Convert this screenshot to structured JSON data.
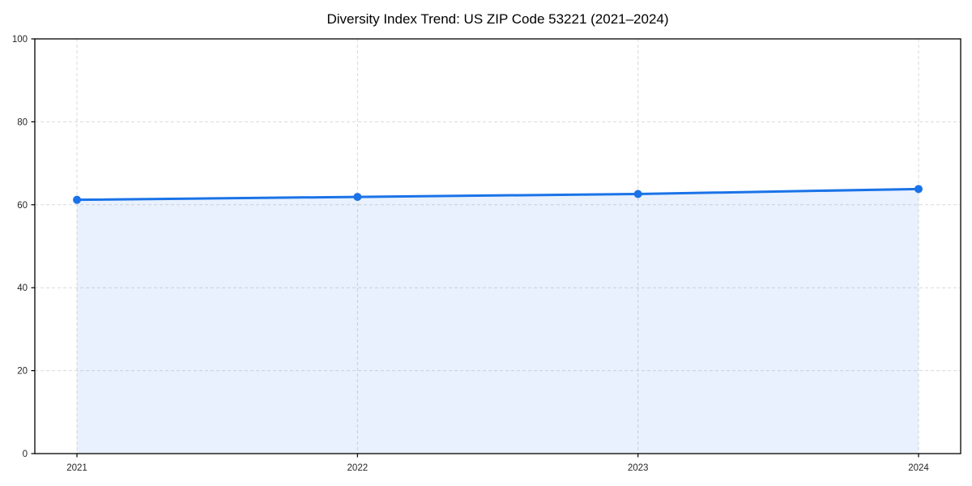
{
  "chart_data": {
    "type": "area",
    "title": "Diversity Index Trend: US ZIP Code 53221 (2021–2024)",
    "x": [
      "2021",
      "2022",
      "2023",
      "2024"
    ],
    "series": [
      {
        "name": "Diversity Index",
        "values": [
          61.2,
          61.9,
          62.6,
          63.8
        ]
      }
    ],
    "xlabel": "",
    "ylabel": "",
    "ylim": [
      0,
      100
    ],
    "yticks": [
      0,
      20,
      40,
      60,
      80,
      100
    ],
    "grid": true,
    "grid_style": "dashed",
    "legend": false,
    "colors": {
      "line": "#1a73e8",
      "marker": "#1a73e8",
      "fill": "rgba(26,115,232,0.10)",
      "gridline": "#d9d9d9",
      "spine": "#000000",
      "background": "#ffffff"
    }
  }
}
